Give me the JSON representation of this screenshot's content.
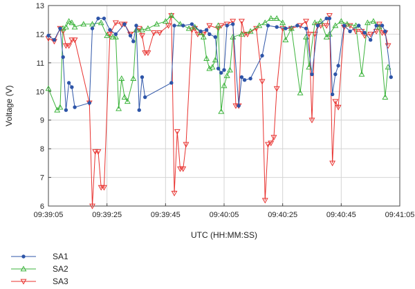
{
  "chart_data": {
    "type": "line",
    "title": "",
    "xlabel": "UTC (HH:MM:SS)",
    "ylabel": "Voltage (V)",
    "xlim": [
      "09:39:05",
      "09:41:05"
    ],
    "ylim": [
      6,
      13
    ],
    "x_ticks": [
      "09:39:05",
      "09:39:25",
      "09:39:45",
      "09:40:05",
      "09:40:25",
      "09:40:45",
      "09:41:05"
    ],
    "y_ticks": [
      6,
      7,
      8,
      9,
      10,
      11,
      12,
      13
    ],
    "grid": true,
    "legend_position": "bottom-left",
    "series": [
      {
        "name": "SA1",
        "color": "#2e55a8",
        "marker": "circle",
        "points": [
          [
            "09:39:05",
            11.95
          ],
          [
            "09:39:07",
            11.8
          ],
          [
            "09:39:09",
            12.2
          ],
          [
            "09:39:10",
            11.2
          ],
          [
            "09:39:11",
            9.35
          ],
          [
            "09:39:12",
            10.3
          ],
          [
            "09:39:13",
            10.15
          ],
          [
            "09:39:14",
            9.45
          ],
          [
            "09:39:19",
            9.6
          ],
          [
            "09:39:20",
            12.2
          ],
          [
            "09:39:22",
            12.55
          ],
          [
            "09:39:24",
            12.55
          ],
          [
            "09:39:26",
            12.15
          ],
          [
            "09:39:28",
            12.0
          ],
          [
            "09:39:31",
            12.35
          ],
          [
            "09:39:33",
            11.95
          ],
          [
            "09:39:34",
            11.75
          ],
          [
            "09:39:35",
            12.3
          ],
          [
            "09:39:36",
            9.35
          ],
          [
            "09:39:37",
            10.5
          ],
          [
            "09:39:38",
            9.8
          ],
          [
            "09:39:47",
            10.3
          ],
          [
            "09:39:48",
            12.3
          ],
          [
            "09:39:51",
            12.3
          ],
          [
            "09:39:54",
            12.35
          ],
          [
            "09:39:57",
            12.1
          ],
          [
            "09:39:59",
            12.15
          ],
          [
            "09:40:00",
            12.0
          ],
          [
            "09:40:02",
            11.9
          ],
          [
            "09:40:03",
            10.8
          ],
          [
            "09:40:04",
            10.65
          ],
          [
            "09:40:05",
            10.75
          ],
          [
            "09:40:06",
            12.3
          ],
          [
            "09:40:08",
            12.35
          ],
          [
            "09:40:10",
            9.5
          ],
          [
            "09:40:11",
            10.5
          ],
          [
            "09:40:12",
            10.4
          ],
          [
            "09:40:14",
            10.45
          ],
          [
            "09:40:18",
            11.25
          ],
          [
            "09:40:20",
            12.3
          ],
          [
            "09:40:23",
            12.25
          ],
          [
            "09:40:26",
            12.2
          ],
          [
            "09:40:30",
            12.3
          ],
          [
            "09:40:33",
            12.2
          ],
          [
            "09:40:35",
            10.6
          ],
          [
            "09:40:37",
            12.3
          ],
          [
            "09:40:40",
            12.55
          ],
          [
            "09:40:41",
            12.55
          ],
          [
            "09:40:42",
            9.9
          ],
          [
            "09:40:43",
            10.6
          ],
          [
            "09:40:44",
            10.9
          ],
          [
            "09:40:46",
            12.3
          ],
          [
            "09:40:48",
            12.1
          ],
          [
            "09:40:51",
            12.3
          ],
          [
            "09:40:53",
            12.05
          ],
          [
            "09:40:55",
            11.8
          ],
          [
            "09:40:57",
            12.3
          ],
          [
            "09:40:59",
            12.3
          ],
          [
            "09:41:00",
            12.1
          ],
          [
            "09:41:02",
            10.5
          ]
        ]
      },
      {
        "name": "SA2",
        "color": "#3bb33b",
        "marker": "triangle-up",
        "points": [
          [
            "09:39:05",
            10.1
          ],
          [
            "09:39:08",
            9.35
          ],
          [
            "09:39:09",
            9.45
          ],
          [
            "09:39:10",
            12.2
          ],
          [
            "09:39:11",
            12.25
          ],
          [
            "09:39:12",
            12.45
          ],
          [
            "09:39:13",
            12.4
          ],
          [
            "09:39:14",
            12.25
          ],
          [
            "09:39:17",
            12.35
          ],
          [
            "09:39:20",
            12.35
          ],
          [
            "09:39:23",
            12.4
          ],
          [
            "09:39:25",
            11.95
          ],
          [
            "09:39:27",
            11.9
          ],
          [
            "09:39:28",
            11.9
          ],
          [
            "09:39:29",
            9.4
          ],
          [
            "09:39:30",
            10.45
          ],
          [
            "09:39:31",
            9.8
          ],
          [
            "09:39:32",
            9.65
          ],
          [
            "09:39:34",
            10.45
          ],
          [
            "09:39:35",
            12.15
          ],
          [
            "09:39:37",
            12.15
          ],
          [
            "09:39:39",
            12.2
          ],
          [
            "09:39:42",
            12.35
          ],
          [
            "09:39:45",
            12.45
          ],
          [
            "09:39:47",
            12.65
          ],
          [
            "09:39:50",
            12.35
          ],
          [
            "09:39:53",
            12.2
          ],
          [
            "09:39:55",
            12.25
          ],
          [
            "09:39:57",
            12.05
          ],
          [
            "09:39:58",
            11.9
          ],
          [
            "09:39:59",
            11.15
          ],
          [
            "09:40:00",
            10.8
          ],
          [
            "09:40:01",
            10.85
          ],
          [
            "09:40:02",
            11.1
          ],
          [
            "09:40:03",
            12.3
          ],
          [
            "09:40:04",
            9.3
          ],
          [
            "09:40:05",
            10.2
          ],
          [
            "09:40:06",
            10.55
          ],
          [
            "09:40:07",
            10.75
          ],
          [
            "09:40:08",
            11.9
          ],
          [
            "09:40:11",
            12.0
          ],
          [
            "09:40:14",
            12.1
          ],
          [
            "09:40:17",
            12.3
          ],
          [
            "09:40:19",
            12.4
          ],
          [
            "09:40:21",
            12.55
          ],
          [
            "09:40:23",
            12.55
          ],
          [
            "09:40:25",
            12.4
          ],
          [
            "09:40:26",
            11.8
          ],
          [
            "09:40:28",
            12.2
          ],
          [
            "09:40:31",
            9.95
          ],
          [
            "09:40:33",
            11.9
          ],
          [
            "09:40:34",
            10.85
          ],
          [
            "09:40:36",
            12.4
          ],
          [
            "09:40:38",
            12.45
          ],
          [
            "09:40:40",
            11.9
          ],
          [
            "09:40:41",
            12.0
          ],
          [
            "09:40:43",
            12.3
          ],
          [
            "09:40:45",
            12.45
          ],
          [
            "09:40:47",
            12.35
          ],
          [
            "09:40:50",
            12.3
          ],
          [
            "09:40:52",
            10.6
          ],
          [
            "09:40:54",
            12.4
          ],
          [
            "09:40:56",
            12.45
          ],
          [
            "09:40:58",
            12.25
          ],
          [
            "09:41:00",
            9.8
          ],
          [
            "09:41:01",
            10.85
          ]
        ]
      },
      {
        "name": "SA3",
        "color": "#e8312e",
        "marker": "triangle-down",
        "points": [
          [
            "09:39:05",
            11.85
          ],
          [
            "09:39:07",
            11.75
          ],
          [
            "09:39:09",
            12.2
          ],
          [
            "09:39:10",
            12.1
          ],
          [
            "09:39:11",
            11.6
          ],
          [
            "09:39:12",
            11.6
          ],
          [
            "09:39:13",
            11.8
          ],
          [
            "09:39:14",
            11.8
          ],
          [
            "09:39:19",
            9.6
          ],
          [
            "09:39:20",
            6.0
          ],
          [
            "09:39:21",
            7.9
          ],
          [
            "09:39:22",
            7.9
          ],
          [
            "09:39:23",
            6.65
          ],
          [
            "09:39:24",
            6.65
          ],
          [
            "09:39:26",
            12.0
          ],
          [
            "09:39:28",
            12.4
          ],
          [
            "09:39:30",
            12.35
          ],
          [
            "09:39:31",
            12.35
          ],
          [
            "09:39:33",
            12.0
          ],
          [
            "09:39:36",
            12.2
          ],
          [
            "09:39:37",
            11.95
          ],
          [
            "09:39:38",
            11.35
          ],
          [
            "09:39:39",
            11.35
          ],
          [
            "09:39:41",
            12.05
          ],
          [
            "09:39:43",
            12.05
          ],
          [
            "09:39:46",
            12.3
          ],
          [
            "09:39:47",
            12.65
          ],
          [
            "09:39:48",
            6.45
          ],
          [
            "09:39:49",
            8.6
          ],
          [
            "09:39:50",
            7.3
          ],
          [
            "09:39:51",
            7.3
          ],
          [
            "09:39:52",
            8.15
          ],
          [
            "09:39:54",
            12.15
          ],
          [
            "09:39:55",
            12.2
          ],
          [
            "09:39:56",
            12.0
          ],
          [
            "09:39:58",
            12.0
          ],
          [
            "09:40:00",
            12.3
          ],
          [
            "09:40:03",
            12.2
          ],
          [
            "09:40:04",
            12.3
          ],
          [
            "09:40:06",
            12.35
          ],
          [
            "09:40:08",
            12.45
          ],
          [
            "09:40:09",
            9.5
          ],
          [
            "09:40:10",
            9.5
          ],
          [
            "09:40:11",
            12.45
          ],
          [
            "09:40:12",
            12.0
          ],
          [
            "09:40:13",
            12.0
          ],
          [
            "09:40:16",
            12.2
          ],
          [
            "09:40:18",
            10.35
          ],
          [
            "09:40:19",
            6.2
          ],
          [
            "09:40:20",
            8.15
          ],
          [
            "09:40:21",
            8.2
          ],
          [
            "09:40:22",
            8.4
          ],
          [
            "09:40:23",
            10.1
          ],
          [
            "09:40:25",
            12.2
          ],
          [
            "09:40:28",
            12.2
          ],
          [
            "09:40:31",
            12.3
          ],
          [
            "09:40:33",
            12.45
          ],
          [
            "09:40:34",
            12.0
          ],
          [
            "09:40:35",
            9.0
          ],
          [
            "09:40:36",
            12.0
          ],
          [
            "09:40:37",
            12.3
          ],
          [
            "09:40:38",
            12.3
          ],
          [
            "09:40:40",
            12.3
          ],
          [
            "09:40:41",
            12.65
          ],
          [
            "09:40:42",
            7.5
          ],
          [
            "09:40:43",
            9.65
          ],
          [
            "09:40:44",
            9.45
          ],
          [
            "09:40:46",
            12.25
          ],
          [
            "09:40:48",
            12.3
          ],
          [
            "09:40:50",
            12.1
          ],
          [
            "09:40:52",
            12.1
          ],
          [
            "09:40:53",
            11.95
          ],
          [
            "09:40:55",
            12.0
          ],
          [
            "09:40:57",
            12.1
          ],
          [
            "09:40:58",
            12.35
          ],
          [
            "09:40:59",
            12.05
          ],
          [
            "09:41:00",
            12.05
          ],
          [
            "09:41:01",
            11.6
          ]
        ]
      }
    ]
  }
}
